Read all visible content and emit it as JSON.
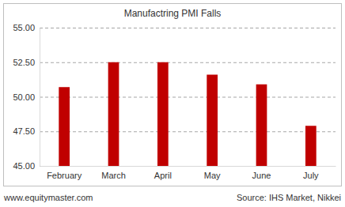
{
  "chart_data": {
    "type": "bar",
    "title": "Manufactring PMI Falls",
    "categories": [
      "February",
      "March",
      "April",
      "May",
      "June",
      "July"
    ],
    "values": [
      50.7,
      52.5,
      52.5,
      51.6,
      50.9,
      47.9
    ],
    "color": "#c00000",
    "ylim": [
      45,
      55
    ],
    "yticks": [
      {
        "value": 45,
        "label": "45.00"
      },
      {
        "value": 47.5,
        "label": "47.50"
      },
      {
        "value": 50,
        "label": "50.00"
      },
      {
        "value": 52.5,
        "label": "52.50"
      },
      {
        "value": 55,
        "label": "55.00"
      }
    ],
    "grid": true,
    "annotations": [
      "www.equitymaster.com",
      "Source: IHS Market, Nikkei"
    ]
  }
}
